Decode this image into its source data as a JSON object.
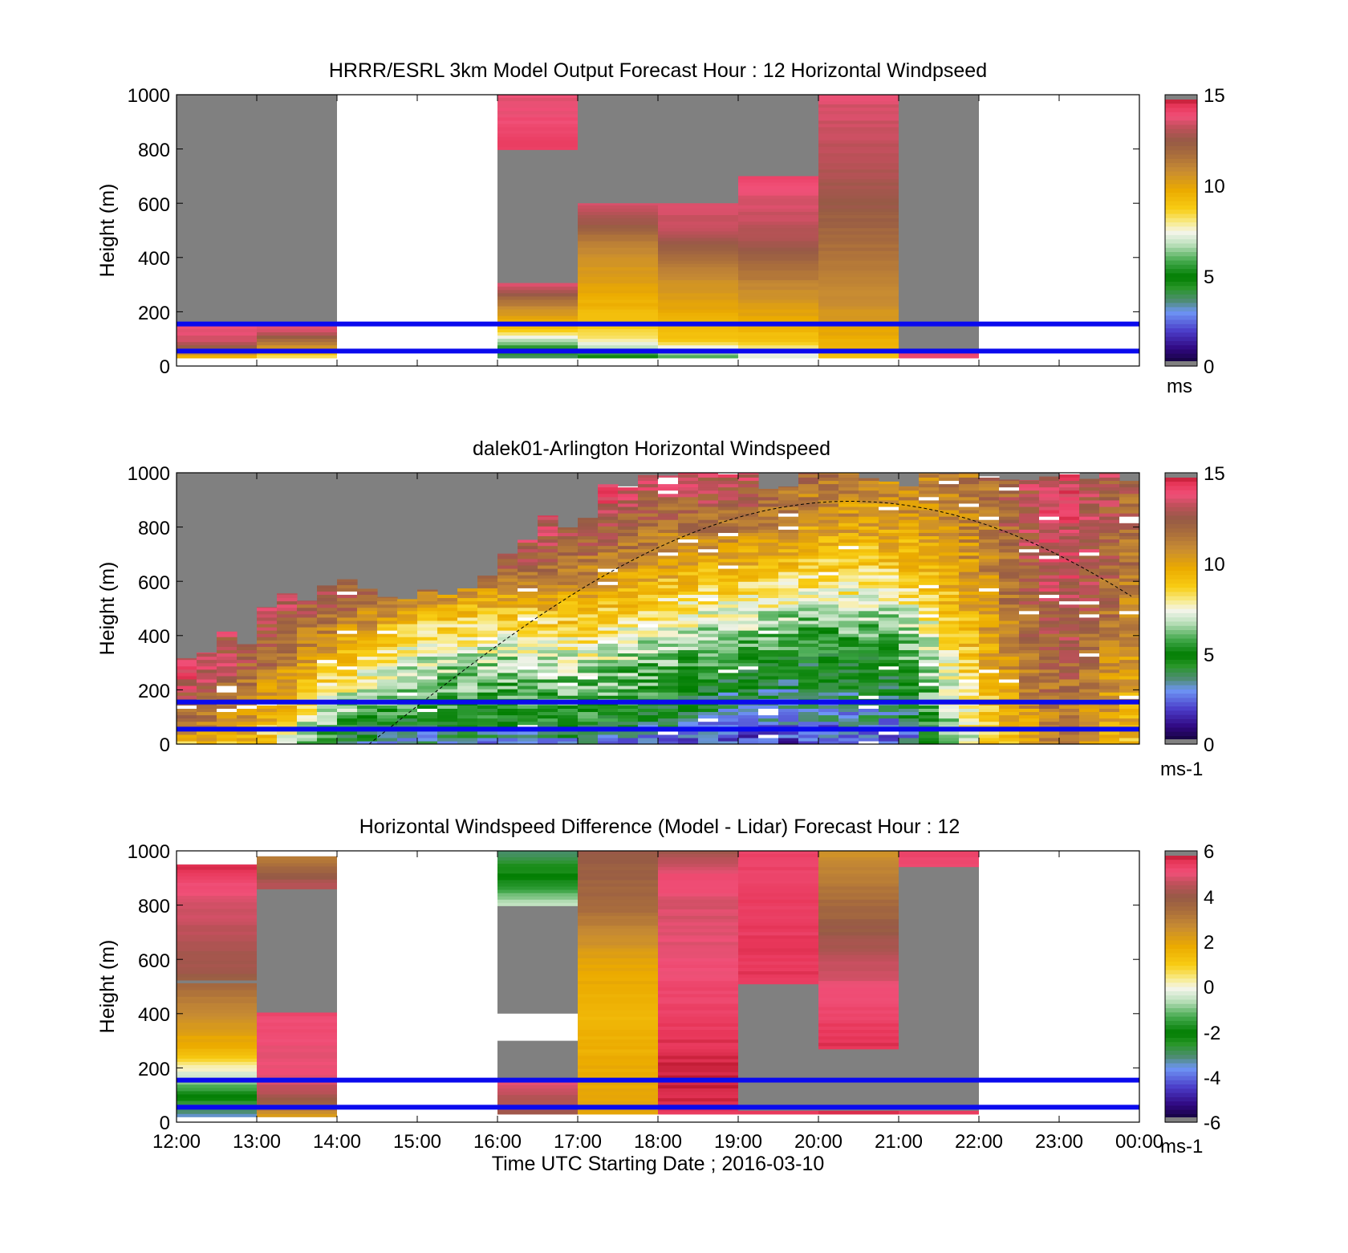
{
  "figure": {
    "x_ticks": [
      "12:00",
      "13:00",
      "14:00",
      "15:00",
      "16:00",
      "17:00",
      "18:00",
      "19:00",
      "20:00",
      "21:00",
      "22:00",
      "23:00",
      "00:00"
    ],
    "x_label": "Time UTC  Starting Date ; 2016-03-10",
    "y_label": "Height (m)"
  },
  "chart_data": [
    {
      "type": "heatmap",
      "title": "HRRR/ESRL 3km Model Output   Forecast Hour : 12 Horizontal Windpseed",
      "ylabel": "Height (m)",
      "xlim_hours_utc": [
        12,
        24
      ],
      "ylim": [
        0,
        1000
      ],
      "y_ticks": [
        "0",
        "200",
        "400",
        "600",
        "800",
        "1000"
      ],
      "colorbar": {
        "min": 0,
        "max": 15,
        "ticks": [
          "0",
          "5",
          "10",
          "15"
        ],
        "unit": "ms"
      },
      "reference_heights_m": [
        55,
        155
      ],
      "columns": [
        {
          "hour": 12,
          "top": 160,
          "base": 30,
          "profile": [
            [
              30,
              9
            ],
            [
              60,
              12
            ],
            [
              100,
              13.5
            ],
            [
              160,
              14
            ]
          ]
        },
        {
          "hour": 13,
          "top": 160,
          "base": 30,
          "profile": [
            [
              30,
              8
            ],
            [
              80,
              11
            ],
            [
              130,
              13.5
            ],
            [
              160,
              14
            ]
          ]
        },
        {
          "hour": 16,
          "top": 1000,
          "base": 30,
          "gap": [
            300,
            800
          ],
          "profile": [
            [
              30,
              3.5
            ],
            [
              80,
              6
            ],
            [
              140,
              9
            ],
            [
              220,
              11
            ],
            [
              300,
              13.5
            ],
            [
              800,
              14.3
            ],
            [
              1000,
              13.6
            ]
          ]
        },
        {
          "hour": 17,
          "top": 600,
          "base": 30,
          "profile": [
            [
              30,
              5
            ],
            [
              100,
              8
            ],
            [
              160,
              9
            ],
            [
              300,
              10
            ],
            [
              450,
              11
            ],
            [
              520,
              12.5
            ],
            [
              600,
              13.5
            ]
          ]
        },
        {
          "hour": 18,
          "top": 600,
          "base": 30,
          "profile": [
            [
              30,
              5.5
            ],
            [
              100,
              9
            ],
            [
              300,
              10.5
            ],
            [
              420,
              12
            ],
            [
              500,
              13.2
            ],
            [
              600,
              13.6
            ]
          ]
        },
        {
          "hour": 19,
          "top": 700,
          "base": 30,
          "profile": [
            [
              30,
              7
            ],
            [
              100,
              9
            ],
            [
              300,
              11
            ],
            [
              450,
              12.8
            ],
            [
              550,
              13.3
            ],
            [
              700,
              14
            ]
          ]
        },
        {
          "hour": 20,
          "top": 1000,
          "base": 30,
          "profile": [
            [
              30,
              9
            ],
            [
              200,
              10.5
            ],
            [
              400,
              11.5
            ],
            [
              600,
              12.5
            ],
            [
              800,
              13.2
            ],
            [
              900,
              13.4
            ],
            [
              1000,
              13.6
            ]
          ]
        },
        {
          "hour": 21,
          "top": 60,
          "base": 30,
          "profile": [
            [
              30,
              14
            ],
            [
              60,
              14
            ]
          ]
        }
      ]
    },
    {
      "type": "heatmap",
      "title": "dalek01-Arlington  Horizontal Windspeed",
      "ylabel": "Height (m)",
      "xlim_hours_utc": [
        12,
        24
      ],
      "ylim": [
        0,
        1000
      ],
      "y_ticks": [
        "0",
        "200",
        "400",
        "600",
        "800",
        "1000"
      ],
      "colorbar": {
        "min": 0,
        "max": 15,
        "ticks": [
          "0",
          "5",
          "10",
          "15"
        ],
        "unit": "ms-1"
      },
      "reference_heights_m": [
        55,
        155
      ],
      "solar_curve_peak": {
        "hour": 20.4,
        "height_m": 895
      },
      "profile_top_hourly": [
        [
          12,
          250
        ],
        [
          13,
          420
        ],
        [
          14,
          650
        ],
        [
          15,
          500
        ],
        [
          16,
          700
        ],
        [
          17,
          850
        ],
        [
          18,
          1000
        ],
        [
          19,
          1000
        ],
        [
          20,
          1000
        ],
        [
          21,
          1000
        ],
        [
          22,
          1000
        ],
        [
          23,
          1000
        ],
        [
          24,
          1000
        ]
      ],
      "speed_profiles_hourly": [
        {
          "hour": 12,
          "profile": [
            [
              0,
              9
            ],
            [
              100,
              12
            ],
            [
              250,
              14
            ]
          ]
        },
        {
          "hour": 13,
          "profile": [
            [
              0,
              9
            ],
            [
              100,
              10
            ],
            [
              300,
              12
            ],
            [
              500,
              13
            ]
          ]
        },
        {
          "hour": 14,
          "profile": [
            [
              0,
              4
            ],
            [
              100,
              6
            ],
            [
              300,
              9
            ],
            [
              500,
              12
            ],
            [
              700,
              13.5
            ]
          ]
        },
        {
          "hour": 15,
          "profile": [
            [
              0,
              3
            ],
            [
              100,
              5
            ],
            [
              200,
              6
            ],
            [
              400,
              8
            ],
            [
              600,
              12
            ]
          ]
        },
        {
          "hour": 16,
          "profile": [
            [
              0,
              3
            ],
            [
              100,
              5
            ],
            [
              300,
              6.5
            ],
            [
              500,
              9
            ],
            [
              700,
              13
            ],
            [
              900,
              14
            ]
          ]
        },
        {
          "hour": 17,
          "profile": [
            [
              0,
              3
            ],
            [
              100,
              5.5
            ],
            [
              300,
              7
            ],
            [
              500,
              9.5
            ],
            [
              700,
              12
            ],
            [
              900,
              14
            ]
          ]
        },
        {
          "hour": 18,
          "profile": [
            [
              0,
              2.5
            ],
            [
              150,
              5
            ],
            [
              300,
              6
            ],
            [
              450,
              7.5
            ],
            [
              650,
              10
            ],
            [
              850,
              12
            ],
            [
              1000,
              13.5
            ]
          ]
        },
        {
          "hour": 19,
          "profile": [
            [
              0,
              2
            ],
            [
              150,
              3.5
            ],
            [
              300,
              5
            ],
            [
              450,
              7
            ],
            [
              650,
              9.5
            ],
            [
              850,
              12
            ],
            [
              1000,
              13.5
            ]
          ]
        },
        {
          "hour": 20,
          "profile": [
            [
              0,
              2
            ],
            [
              150,
              3.5
            ],
            [
              300,
              4.5
            ],
            [
              450,
              6
            ],
            [
              600,
              8
            ],
            [
              800,
              10
            ],
            [
              1000,
              11.5
            ]
          ]
        },
        {
          "hour": 21,
          "profile": [
            [
              0,
              2
            ],
            [
              150,
              4
            ],
            [
              300,
              5
            ],
            [
              450,
              6.5
            ],
            [
              600,
              8.5
            ],
            [
              800,
              10
            ],
            [
              1000,
              11
            ]
          ]
        },
        {
          "hour": 22,
          "profile": [
            [
              0,
              8
            ],
            [
              200,
              9
            ],
            [
              500,
              10
            ],
            [
              800,
              11
            ],
            [
              1000,
              11.5
            ]
          ]
        },
        {
          "hour": 23,
          "profile": [
            [
              0,
              11
            ],
            [
              200,
              12
            ],
            [
              500,
              13.3
            ],
            [
              800,
              13.8
            ],
            [
              1000,
              13.8
            ]
          ]
        },
        {
          "hour": 24,
          "profile": [
            [
              0,
              9
            ],
            [
              300,
              10
            ],
            [
              600,
              11
            ],
            [
              1000,
              12
            ]
          ]
        }
      ]
    },
    {
      "type": "heatmap",
      "title": "Horizontal Windspeed Difference (Model - Lidar) Forecast Hour : 12",
      "ylabel": "Height (m)",
      "xlabel": "Time UTC  Starting Date ; 2016-03-10",
      "xlim_hours_utc": [
        12,
        24
      ],
      "ylim": [
        0,
        1000
      ],
      "y_ticks": [
        "0",
        "200",
        "400",
        "600",
        "800",
        "1000"
      ],
      "colorbar": {
        "min": -6,
        "max": 6,
        "ticks": [
          "-6",
          "-4",
          "-2",
          "0",
          "2",
          "4",
          "6"
        ],
        "unit": "ms-1"
      },
      "reference_heights_m": [
        55,
        155
      ],
      "columns": [
        {
          "hour": 12,
          "top": 950,
          "base": 20,
          "gap": [
            510,
            530
          ],
          "profile": [
            [
              20,
              -3.5
            ],
            [
              100,
              -2
            ],
            [
              170,
              -0.5
            ],
            [
              260,
              1.5
            ],
            [
              450,
              3
            ],
            [
              550,
              4
            ],
            [
              700,
              4.5
            ],
            [
              850,
              5
            ],
            [
              950,
              5.6
            ]
          ]
        },
        {
          "hour": 13,
          "top": 980,
          "base": 20,
          "gap": [
            400,
            870
          ],
          "profile": [
            [
              20,
              2
            ],
            [
              80,
              4
            ],
            [
              160,
              5
            ],
            [
              300,
              5
            ],
            [
              400,
              5.2
            ],
            [
              870,
              4.5
            ],
            [
              980,
              3
            ]
          ]
        },
        {
          "hour": 16,
          "top": 1000,
          "base": 30,
          "gap": [
            160,
            800
          ],
          "profile": [
            [
              30,
              4
            ],
            [
              160,
              5
            ],
            [
              800,
              -0.5
            ],
            [
              900,
              -2
            ],
            [
              1000,
              -3
            ]
          ]
        },
        {
          "hour": 17,
          "top": 1000,
          "base": 30,
          "profile": [
            [
              30,
              2
            ],
            [
              400,
              1.5
            ],
            [
              600,
              2
            ],
            [
              800,
              3.5
            ],
            [
              1000,
              4
            ]
          ]
        },
        {
          "hour": 18,
          "top": 1000,
          "base": 30,
          "profile": [
            [
              30,
              5.5
            ],
            [
              150,
              5.8
            ],
            [
              600,
              5
            ],
            [
              800,
              4.8
            ],
            [
              900,
              5.2
            ],
            [
              1000,
              4.2
            ]
          ]
        },
        {
          "hour": 19,
          "top": 1000,
          "base": 30,
          "gap": [
            40,
            520
          ],
          "profile": [
            [
              30,
              5.5
            ],
            [
              520,
              5.5
            ],
            [
              800,
              5.4
            ],
            [
              1000,
              5.3
            ]
          ]
        },
        {
          "hour": 20,
          "top": 1000,
          "base": 30,
          "gap": [
            40,
            280
          ],
          "profile": [
            [
              30,
              5.5
            ],
            [
              280,
              5.6
            ],
            [
              500,
              5
            ],
            [
              700,
              4
            ],
            [
              800,
              3.5
            ],
            [
              1000,
              2.5
            ]
          ]
        },
        {
          "hour": 21,
          "top": 1000,
          "base": 30,
          "gap": [
            40,
            950
          ],
          "profile": [
            [
              30,
              5.5
            ],
            [
              950,
              5.2
            ],
            [
              1000,
              5.2
            ]
          ]
        }
      ]
    }
  ]
}
